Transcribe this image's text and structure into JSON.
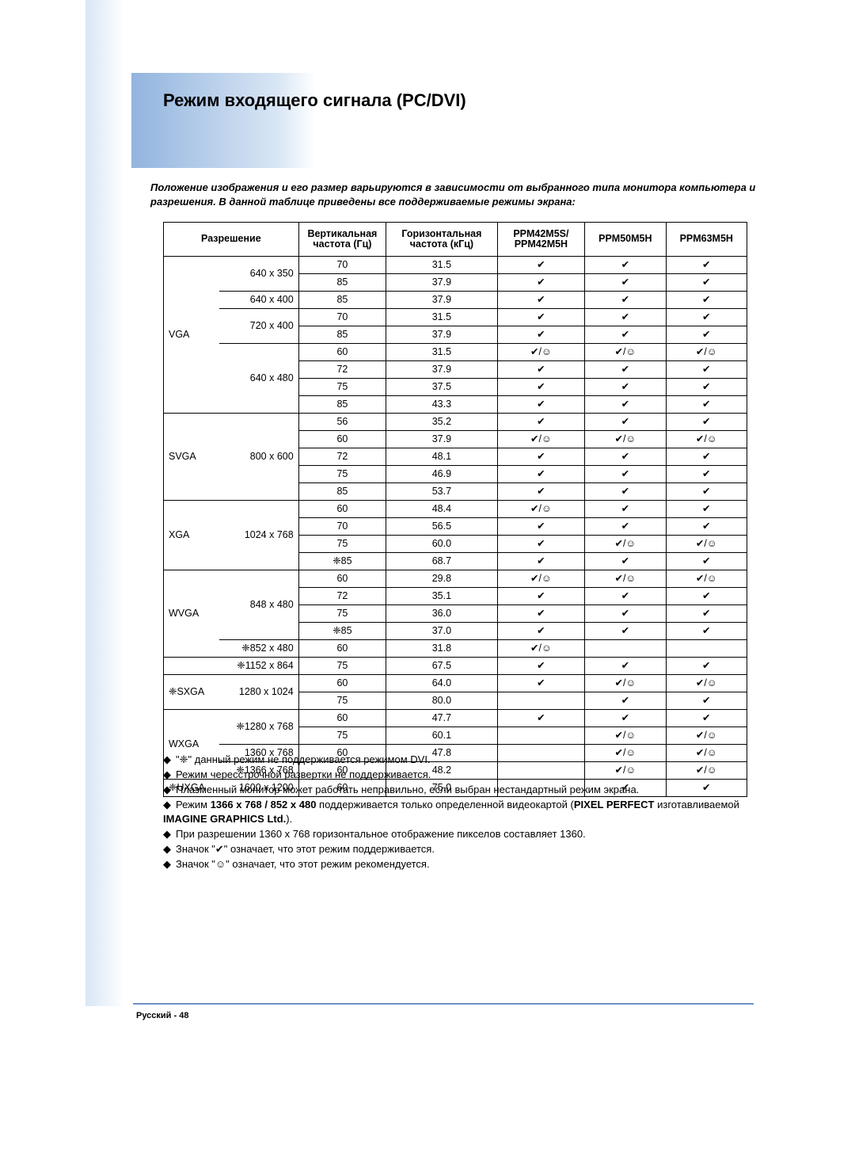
{
  "title": "Режим входящего сигнала (PC/DVI)",
  "intro": "Положение изображения и его размер варьируются в зависимости от выбранного типа монитора компьютера и разрешения. В данной таблице приведены все поддерживаемые режимы экрана:",
  "headers": {
    "resolution": "Разрешение",
    "vfreq": "Вертикальная частота (Гц)",
    "hfreq": "Горизонтальная частота (кГц)",
    "c1": "PPM42M5S/ PPM42M5H",
    "c2": "PPM50M5H",
    "c3": "PPM63M5H"
  },
  "rows": [
    {
      "cat": "VGA",
      "catspan": 9,
      "res": "640 x 350",
      "resspan": 2,
      "v": "70",
      "h": "31.5",
      "a": "✔",
      "b": "✔",
      "c": "✔"
    },
    {
      "v": "85",
      "h": "37.9",
      "a": "✔",
      "b": "✔",
      "c": "✔"
    },
    {
      "res": "640 x 400",
      "resspan": 1,
      "v": "85",
      "h": "37.9",
      "a": "✔",
      "b": "✔",
      "c": "✔"
    },
    {
      "res": "720 x 400",
      "resspan": 2,
      "v": "70",
      "h": "31.5",
      "a": "✔",
      "b": "✔",
      "c": "✔"
    },
    {
      "v": "85",
      "h": "37.9",
      "a": "✔",
      "b": "✔",
      "c": "✔"
    },
    {
      "res": "640 x 480",
      "resspan": 4,
      "v": "60",
      "h": "31.5",
      "a": "✔/☺",
      "b": "✔/☺",
      "c": "✔/☺"
    },
    {
      "v": "72",
      "h": "37.9",
      "a": "✔",
      "b": "✔",
      "c": "✔"
    },
    {
      "v": "75",
      "h": "37.5",
      "a": "✔",
      "b": "✔",
      "c": "✔"
    },
    {
      "v": "85",
      "h": "43.3",
      "a": "✔",
      "b": "✔",
      "c": "✔"
    },
    {
      "cat": "SVGA",
      "catspan": 5,
      "res": "800 x 600",
      "resspan": 5,
      "v": "56",
      "h": "35.2",
      "a": "✔",
      "b": "✔",
      "c": "✔"
    },
    {
      "v": "60",
      "h": "37.9",
      "a": "✔/☺",
      "b": "✔/☺",
      "c": "✔/☺"
    },
    {
      "v": "72",
      "h": "48.1",
      "a": "✔",
      "b": "✔",
      "c": "✔"
    },
    {
      "v": "75",
      "h": "46.9",
      "a": "✔",
      "b": "✔",
      "c": "✔"
    },
    {
      "v": "85",
      "h": "53.7",
      "a": "✔",
      "b": "✔",
      "c": "✔"
    },
    {
      "cat": "XGA",
      "catspan": 4,
      "res": "1024 x 768",
      "resspan": 4,
      "v": "60",
      "h": "48.4",
      "a": "✔/☺",
      "b": "✔",
      "c": "✔"
    },
    {
      "v": "70",
      "h": "56.5",
      "a": "✔",
      "b": "✔",
      "c": "✔"
    },
    {
      "v": "75",
      "h": "60.0",
      "a": "✔",
      "b": "✔/☺",
      "c": "✔/☺"
    },
    {
      "v": "❈85",
      "h": "68.7",
      "a": "✔",
      "b": "✔",
      "c": "✔"
    },
    {
      "cat": "WVGA",
      "catspan": 5,
      "res": "848 x 480",
      "resspan": 4,
      "v": "60",
      "h": "29.8",
      "a": "✔/☺",
      "b": "✔/☺",
      "c": "✔/☺"
    },
    {
      "v": "72",
      "h": "35.1",
      "a": "✔",
      "b": "✔",
      "c": "✔"
    },
    {
      "v": "75",
      "h": "36.0",
      "a": "✔",
      "b": "✔",
      "c": "✔"
    },
    {
      "v": "❈85",
      "h": "37.0",
      "a": "✔",
      "b": "✔",
      "c": "✔"
    },
    {
      "res": "❈852 x 480",
      "resspan": 1,
      "v": "60",
      "h": "31.8",
      "a": "✔/☺",
      "b": "",
      "c": ""
    },
    {
      "cat": "",
      "catspan": 1,
      "res": "❈1152 x 864",
      "resspan": 1,
      "v": "75",
      "h": "67.5",
      "a": "✔",
      "b": "✔",
      "c": "✔"
    },
    {
      "cat": "❈SXGA",
      "catspan": 2,
      "res": "1280 x 1024",
      "resspan": 2,
      "v": "60",
      "h": "64.0",
      "a": "✔",
      "b": "✔/☺",
      "c": "✔/☺"
    },
    {
      "v": "75",
      "h": "80.0",
      "a": "",
      "b": "✔",
      "c": "✔"
    },
    {
      "cat": "WXGA",
      "catspan": 4,
      "res": "❈1280 x 768",
      "resspan": 2,
      "v": "60",
      "h": "47.7",
      "a": "✔",
      "b": "✔",
      "c": "✔"
    },
    {
      "v": "75",
      "h": "60.1",
      "a": "",
      "b": "✔/☺",
      "c": "✔/☺"
    },
    {
      "res": "1360 x 768",
      "resspan": 1,
      "v": "60",
      "h": "47.8",
      "a": "",
      "b": "✔/☺",
      "c": "✔/☺"
    },
    {
      "res": "❈1366 x 768",
      "resspan": 1,
      "v": "60",
      "h": "48.2",
      "a": "",
      "b": "✔/☺",
      "c": "✔/☺"
    },
    {
      "cat": "❈UXGA",
      "catspan": 1,
      "res": "1600 x 1200",
      "resspan": 1,
      "v": "60",
      "h": "75.0",
      "a": "",
      "b": "✔",
      "c": "✔"
    }
  ],
  "col_widths": [
    "70px",
    "100px",
    "110px",
    "140px",
    "110px",
    "102px",
    "102px"
  ],
  "notes": [
    "\"❈\" данный режим не поддерживается режимом DVI.",
    "Режим чересстрочной развертки не поддерживается.",
    "Плазменный монитор может работать неправильно, если выбран нестандартный режим экрана.",
    "Режим <b>1366 x 768 / 852 x 480</b> поддерживается только определенной видеокартой (<b>PIXEL PERFECT</b> изготавливаемой <b>IMAGINE GRAPHICS Ltd.</b>).",
    "При разрешении 1360 x 768 горизонтальное отображение пикселов составляет 1360.",
    "Значок \"✔\" означает, что этот режим поддерживается.",
    "Значок \"☺\" означает, что этот режим рекомендуется."
  ],
  "footer": "Русский - 48"
}
